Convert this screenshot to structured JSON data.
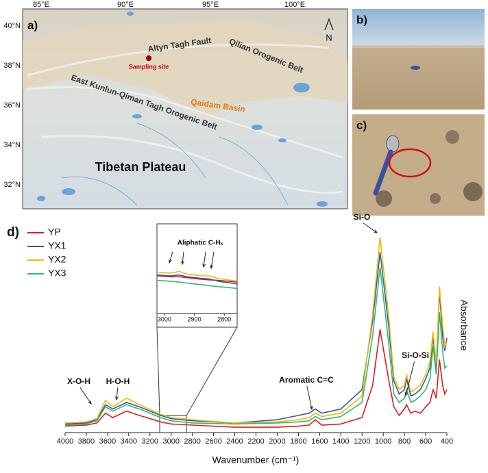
{
  "map": {
    "panel_label": "a)",
    "lon_ticks": [
      "85°E",
      "90°E",
      "95°E",
      "100°E"
    ],
    "lat_ticks": [
      "40°N",
      "38°N",
      "36°N",
      "34°N",
      "32°N"
    ],
    "north": "N",
    "labels": {
      "altyn": "Altyn Tagh Fault",
      "qilian": "Qilian Orogenic Belt",
      "site": "Sampling site",
      "qaidam": "Qaidam Basin",
      "kunlun": "East Kunlun-Qiman Tagh Orogenic Belt",
      "tibet": "Tibetan Plateau"
    }
  },
  "photos": {
    "b": "b)",
    "c": "c)"
  },
  "chart_data": [
    {
      "type": "line",
      "panel_label": "d)",
      "xlabel": "Wavenumber (cm⁻¹)",
      "ylabel": "Absorbance",
      "legend": "top-left",
      "annotations": [
        "X-O-H",
        "H-O-H",
        "Aromatic C=C",
        "Si-O",
        "Si-O-Si"
      ],
      "xlim": [
        4000,
        400
      ],
      "ylim": [
        0,
        1
      ],
      "xticks": [
        4000,
        3800,
        3600,
        3400,
        3200,
        3000,
        2800,
        2600,
        2400,
        2200,
        2000,
        1800,
        1600,
        1400,
        1200,
        1000,
        800,
        600,
        400
      ],
      "x": [
        4000,
        3800,
        3700,
        3620,
        3550,
        3420,
        3300,
        3100,
        3000,
        2800,
        2400,
        2000,
        1800,
        1700,
        1640,
        1580,
        1400,
        1200,
        1100,
        1030,
        950,
        900,
        850,
        800,
        780,
        740,
        700,
        650,
        600,
        560,
        530,
        500,
        470,
        440,
        420,
        400
      ],
      "series": [
        {
          "name": "YP",
          "color": "#e41a1c",
          "values": [
            0.03,
            0.035,
            0.045,
            0.09,
            0.07,
            0.1,
            0.08,
            0.05,
            0.04,
            0.035,
            0.025,
            0.025,
            0.03,
            0.035,
            0.06,
            0.035,
            0.04,
            0.07,
            0.22,
            0.48,
            0.25,
            0.12,
            0.08,
            0.11,
            0.13,
            0.09,
            0.1,
            0.09,
            0.12,
            0.14,
            0.2,
            0.16,
            0.34,
            0.22,
            0.18,
            0.2
          ]
        },
        {
          "name": "YX1",
          "color": "#2f59a8",
          "values": [
            0.04,
            0.045,
            0.06,
            0.13,
            0.11,
            0.14,
            0.12,
            0.08,
            0.065,
            0.055,
            0.045,
            0.06,
            0.08,
            0.09,
            0.11,
            0.09,
            0.11,
            0.2,
            0.52,
            0.84,
            0.5,
            0.24,
            0.18,
            0.2,
            0.25,
            0.17,
            0.18,
            0.2,
            0.25,
            0.3,
            0.45,
            0.3,
            0.66,
            0.45,
            0.38,
            0.44
          ]
        },
        {
          "name": "YX2",
          "color": "#f6b800",
          "values": [
            0.045,
            0.05,
            0.065,
            0.15,
            0.12,
            0.16,
            0.13,
            0.085,
            0.07,
            0.06,
            0.045,
            0.05,
            0.06,
            0.07,
            0.09,
            0.075,
            0.09,
            0.17,
            0.55,
            0.91,
            0.55,
            0.26,
            0.2,
            0.22,
            0.27,
            0.19,
            0.2,
            0.22,
            0.27,
            0.33,
            0.47,
            0.32,
            0.68,
            0.5,
            0.4,
            0.42
          ]
        },
        {
          "name": "YX3",
          "color": "#2eb872",
          "values": [
            0.035,
            0.04,
            0.055,
            0.12,
            0.1,
            0.13,
            0.11,
            0.07,
            0.055,
            0.045,
            0.04,
            0.045,
            0.05,
            0.055,
            0.075,
            0.06,
            0.075,
            0.14,
            0.45,
            0.77,
            0.42,
            0.18,
            0.14,
            0.16,
            0.2,
            0.14,
            0.15,
            0.17,
            0.2,
            0.25,
            0.4,
            0.27,
            0.56,
            0.38,
            0.3,
            0.31
          ]
        }
      ]
    },
    {
      "type": "line",
      "annotations": [
        "Aliphatic C-Hₓ"
      ],
      "xlim": [
        3025,
        2757
      ],
      "ylim": [
        0,
        1
      ],
      "xticks": [
        3000,
        2900,
        2800
      ],
      "x": [
        3025,
        2980,
        2950,
        2925,
        2900,
        2870,
        2850,
        2820,
        2757
      ],
      "series": [
        {
          "name": "YP",
          "color": "#e41a1c",
          "values": [
            0.42,
            0.41,
            0.41,
            0.4,
            0.39,
            0.38,
            0.375,
            0.37,
            0.35
          ]
        },
        {
          "name": "YX1",
          "color": "#2f59a8",
          "values": [
            0.43,
            0.42,
            0.43,
            0.41,
            0.4,
            0.39,
            0.385,
            0.36,
            0.33
          ]
        },
        {
          "name": "YX2",
          "color": "#f6b800",
          "values": [
            0.46,
            0.45,
            0.47,
            0.44,
            0.43,
            0.42,
            0.42,
            0.39,
            0.36
          ]
        },
        {
          "name": "YX3",
          "color": "#2eb872",
          "values": [
            0.37,
            0.36,
            0.35,
            0.34,
            0.33,
            0.32,
            0.31,
            0.3,
            0.28
          ]
        }
      ]
    }
  ]
}
